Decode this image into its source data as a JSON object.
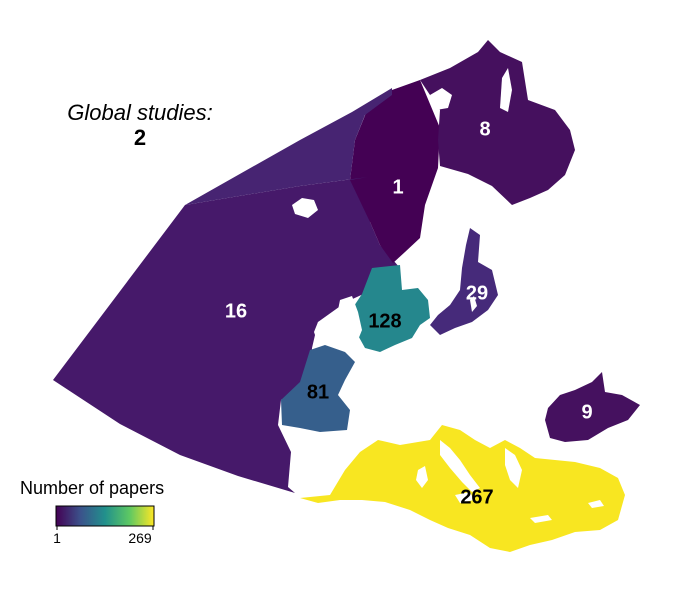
{
  "global_studies": {
    "title": "Global studies:",
    "count": "2"
  },
  "legend": {
    "title": "Number of papers",
    "min_label": "1",
    "max_label": "269",
    "min": 1,
    "max": 269,
    "palette": [
      "#440154",
      "#3b528b",
      "#21908c",
      "#5dc863",
      "#fde725"
    ]
  },
  "regions": [
    {
      "id": "nordic-sea",
      "value": 1,
      "label": "1",
      "label_color": "#ffffff",
      "fill": "#440154"
    },
    {
      "id": "barents-sea",
      "value": 8,
      "label": "8",
      "label_color": "#ffffff",
      "fill": "#45105e"
    },
    {
      "id": "atlantic",
      "value": 16,
      "label": "16",
      "label_color": "#ffffff",
      "fill": "#46196a"
    },
    {
      "id": "baltic",
      "value": 29,
      "label": "29",
      "label_color": "#ffffff",
      "fill": "#462a7a"
    },
    {
      "id": "north-sea",
      "value": 128,
      "label": "128",
      "label_color": "#000000",
      "fill": "#25878d"
    },
    {
      "id": "bay-of-biscay",
      "value": 81,
      "label": "81",
      "label_color": "#000000",
      "fill": "#365f8c"
    },
    {
      "id": "black-sea",
      "value": 9,
      "label": "9",
      "label_color": "#ffffff",
      "fill": "#45115f"
    },
    {
      "id": "mediterranean",
      "value": 267,
      "label": "267",
      "label_color": "#000000",
      "fill": "#f8e621"
    }
  ]
}
